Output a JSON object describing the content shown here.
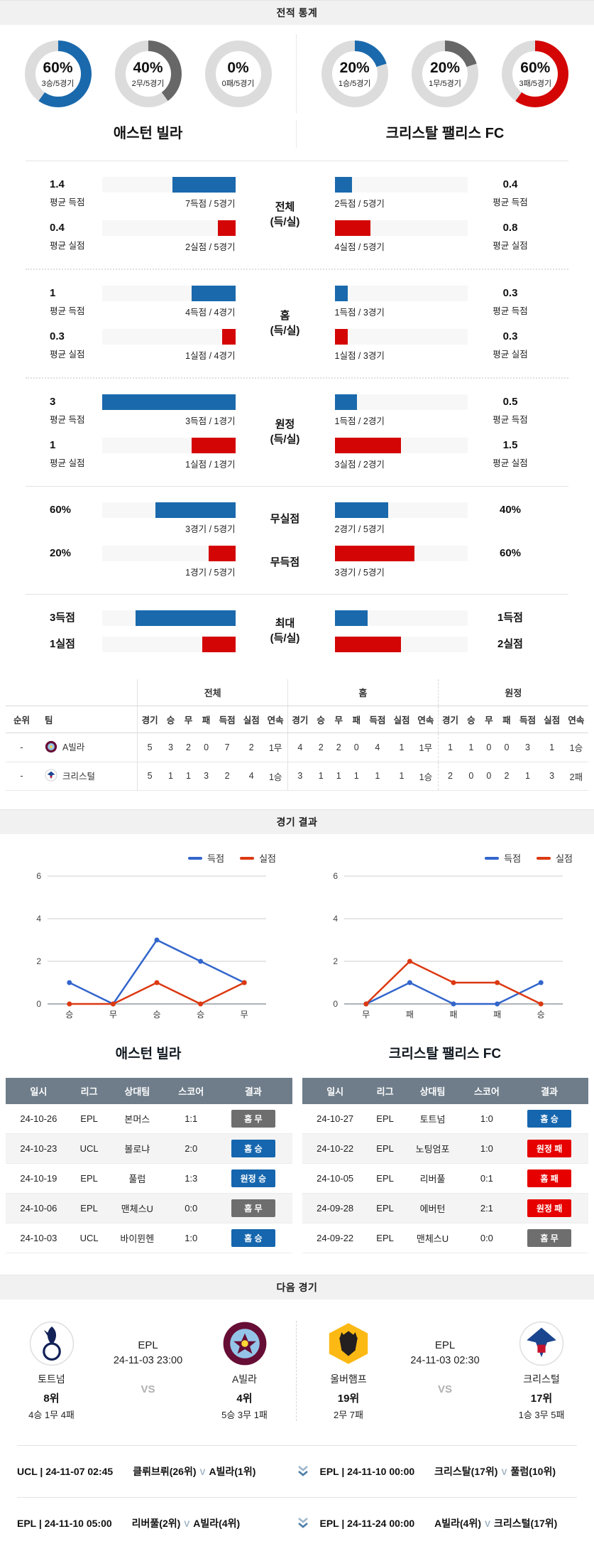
{
  "colors": {
    "blue": "#1a69ac",
    "red": "#d40505",
    "donut_gray": "#676767",
    "donut_track": "#dcdcdc",
    "line_blue": "#3366cc",
    "line_red": "#dc3912",
    "badge_blue": "#1566ae",
    "badge_red": "#e60000",
    "badge_gray": "#6e6e6e",
    "table_header_bg": "#6f7d8a"
  },
  "section_headers": {
    "stats": "전적 통계",
    "results": "경기 결과",
    "next": "다음 경기"
  },
  "teams": {
    "left": "애스턴 빌라",
    "right": "크리스탈 팰리스 FC"
  },
  "donuts": {
    "left": [
      {
        "pct": "60%",
        "sub": "3승/5경기",
        "value": 60,
        "color": "#1a69ac"
      },
      {
        "pct": "40%",
        "sub": "2무/5경기",
        "value": 40,
        "color": "#676767"
      },
      {
        "pct": "0%",
        "sub": "0패/5경기",
        "value": 0,
        "color": "#d40505"
      }
    ],
    "right": [
      {
        "pct": "20%",
        "sub": "1승/5경기",
        "value": 20,
        "color": "#1a69ac"
      },
      {
        "pct": "20%",
        "sub": "1무/5경기",
        "value": 20,
        "color": "#676767"
      },
      {
        "pct": "60%",
        "sub": "3패/5경기",
        "value": 60,
        "color": "#d40505"
      }
    ]
  },
  "comparisons": [
    {
      "center_line1": "전체",
      "center_line2": "(득/실)",
      "rows": [
        {
          "lv": "1.4",
          "ll": "평균 득점",
          "lsub": "7득점 / 5경기",
          "lbar": {
            "pct": 47,
            "color": "#1a69ac"
          },
          "rbar": {
            "pct": 13,
            "color": "#1a69ac"
          },
          "rsub": "2득점 / 5경기",
          "rv": "0.4",
          "rl": "평균 득점"
        },
        {
          "lv": "0.4",
          "ll": "평균 실점",
          "lsub": "2실점 / 5경기",
          "lbar": {
            "pct": 13,
            "color": "#d40505"
          },
          "rbar": {
            "pct": 27,
            "color": "#d40505"
          },
          "rsub": "4실점 / 5경기",
          "rv": "0.8",
          "rl": "평균 실점"
        }
      ]
    },
    {
      "center_line1": "홈",
      "center_line2": "(득/실)",
      "rows": [
        {
          "lv": "1",
          "ll": "평균 득점",
          "lsub": "4득점 / 4경기",
          "lbar": {
            "pct": 33,
            "color": "#1a69ac"
          },
          "rbar": {
            "pct": 10,
            "color": "#1a69ac"
          },
          "rsub": "1득점 / 3경기",
          "rv": "0.3",
          "rl": "평균 득점"
        },
        {
          "lv": "0.3",
          "ll": "평균 실점",
          "lsub": "1실점 / 4경기",
          "lbar": {
            "pct": 10,
            "color": "#d40505"
          },
          "rbar": {
            "pct": 10,
            "color": "#d40505"
          },
          "rsub": "1실점 / 3경기",
          "rv": "0.3",
          "rl": "평균 실점"
        }
      ]
    },
    {
      "center_line1": "원정",
      "center_line2": "(득/실)",
      "rows": [
        {
          "lv": "3",
          "ll": "평균 득점",
          "lsub": "3득점 / 1경기",
          "lbar": {
            "pct": 100,
            "color": "#1a69ac"
          },
          "rbar": {
            "pct": 17,
            "color": "#1a69ac"
          },
          "rsub": "1득점 / 2경기",
          "rv": "0.5",
          "rl": "평균 득점"
        },
        {
          "lv": "1",
          "ll": "평균 실점",
          "lsub": "1실점 / 1경기",
          "lbar": {
            "pct": 33,
            "color": "#d40505"
          },
          "rbar": {
            "pct": 50,
            "color": "#d40505"
          },
          "rsub": "3실점 / 2경기",
          "rv": "1.5",
          "rl": "평균 실점"
        }
      ]
    },
    {
      "rows": [
        {
          "lv": "60%",
          "lsub": "3경기 / 5경기",
          "lbar": {
            "pct": 60,
            "color": "#1a69ac"
          },
          "center": "무실점",
          "rbar": {
            "pct": 40,
            "color": "#1a69ac"
          },
          "rsub": "2경기 / 5경기",
          "rv": "40%"
        },
        {
          "lv": "20%",
          "lsub": "1경기 / 5경기",
          "lbar": {
            "pct": 20,
            "color": "#d40505"
          },
          "center": "무득점",
          "rbar": {
            "pct": 60,
            "color": "#d40505"
          },
          "rsub": "3경기 / 5경기",
          "rv": "60%"
        }
      ]
    },
    {
      "center_line1": "최대",
      "center_line2": "(득/실)",
      "rows": [
        {
          "lv": "3득점",
          "lbar": {
            "pct": 75,
            "color": "#1a69ac"
          },
          "rbar": {
            "pct": 25,
            "color": "#1a69ac"
          },
          "rv": "1득점"
        },
        {
          "lv": "1실점",
          "lbar": {
            "pct": 25,
            "color": "#d40505"
          },
          "rbar": {
            "pct": 50,
            "color": "#d40505"
          },
          "rv": "2실점"
        }
      ]
    }
  ],
  "standings": {
    "col_rank": "순위",
    "col_team": "팀",
    "groups": [
      "전체",
      "홈",
      "원정"
    ],
    "subcols": [
      "경기",
      "승",
      "무",
      "패",
      "득점",
      "실점",
      "연속"
    ],
    "rows": [
      {
        "rank": "-",
        "team": "A빌라",
        "overall": [
          "5",
          "3",
          "2",
          "0",
          "7",
          "2",
          "1무"
        ],
        "home": [
          "4",
          "2",
          "2",
          "0",
          "4",
          "1",
          "1무"
        ],
        "away": [
          "1",
          "1",
          "0",
          "0",
          "3",
          "1",
          "1승"
        ]
      },
      {
        "rank": "-",
        "team": "크리스털",
        "overall": [
          "5",
          "1",
          "1",
          "3",
          "2",
          "4",
          "1승"
        ],
        "home": [
          "3",
          "1",
          "1",
          "1",
          "1",
          "1",
          "1승"
        ],
        "away": [
          "2",
          "0",
          "0",
          "2",
          "1",
          "3",
          "2패"
        ]
      }
    ]
  },
  "chart_data": [
    {
      "type": "line",
      "title": "애스턴 빌라",
      "x_labels": [
        "승",
        "무",
        "승",
        "승",
        "무"
      ],
      "series": [
        {
          "name": "득점",
          "color": "#3366cc",
          "values": [
            1,
            0,
            3,
            2,
            1
          ]
        },
        {
          "name": "실점",
          "color": "#dc3912",
          "values": [
            0,
            0,
            1,
            0,
            1
          ]
        }
      ],
      "ylim": [
        0,
        6
      ],
      "yticks": [
        0,
        2,
        4,
        6
      ],
      "grid": true,
      "legend_position": "top-right"
    },
    {
      "type": "line",
      "title": "크리스탈 팰리스 FC",
      "x_labels": [
        "무",
        "패",
        "패",
        "패",
        "승"
      ],
      "series": [
        {
          "name": "득점",
          "color": "#3366cc",
          "values": [
            0,
            1,
            0,
            0,
            1
          ]
        },
        {
          "name": "실점",
          "color": "#dc3912",
          "values": [
            0,
            2,
            1,
            1,
            0
          ]
        }
      ],
      "ylim": [
        0,
        6
      ],
      "yticks": [
        0,
        2,
        4,
        6
      ],
      "grid": true,
      "legend_position": "top-right"
    }
  ],
  "match_tables": {
    "headers": [
      "일시",
      "리그",
      "상대팀",
      "스코어",
      "결과"
    ],
    "left": {
      "rows": [
        {
          "date": "24-10-26",
          "league": "EPL",
          "opp": "본머스",
          "score": "1:1",
          "result": "홈 무",
          "type": "draw"
        },
        {
          "date": "24-10-23",
          "league": "UCL",
          "opp": "볼로냐",
          "score": "2:0",
          "result": "홈 승",
          "type": "win"
        },
        {
          "date": "24-10-19",
          "league": "EPL",
          "opp": "풀럼",
          "score": "1:3",
          "result": "원정 승",
          "type": "win"
        },
        {
          "date": "24-10-06",
          "league": "EPL",
          "opp": "맨체스U",
          "score": "0:0",
          "result": "홈 무",
          "type": "draw"
        },
        {
          "date": "24-10-03",
          "league": "UCL",
          "opp": "바이뮌헨",
          "score": "1:0",
          "result": "홈 승",
          "type": "win"
        }
      ]
    },
    "right": {
      "rows": [
        {
          "date": "24-10-27",
          "league": "EPL",
          "opp": "토트넘",
          "score": "1:0",
          "result": "홈 승",
          "type": "win"
        },
        {
          "date": "24-10-22",
          "league": "EPL",
          "opp": "노팅엄포",
          "score": "1:0",
          "result": "원정 패",
          "type": "loss"
        },
        {
          "date": "24-10-05",
          "league": "EPL",
          "opp": "리버풀",
          "score": "0:1",
          "result": "홈 패",
          "type": "loss"
        },
        {
          "date": "24-09-28",
          "league": "EPL",
          "opp": "에버턴",
          "score": "2:1",
          "result": "원정 패",
          "type": "loss"
        },
        {
          "date": "24-09-22",
          "league": "EPL",
          "opp": "맨체스U",
          "score": "0:0",
          "result": "홈 무",
          "type": "draw"
        }
      ]
    }
  },
  "next_matches": [
    {
      "league": "EPL",
      "datetime": "24-11-03 23:00",
      "vs": "VS",
      "home": {
        "name": "토트넘",
        "rank": "8위",
        "record": "4승 1무 4패"
      },
      "away": {
        "name": "A빌라",
        "rank": "4위",
        "record": "5승 3무 1패"
      }
    },
    {
      "league": "EPL",
      "datetime": "24-11-03 02:30",
      "vs": "VS",
      "home": {
        "name": "울버햄프",
        "rank": "19위",
        "record": "2무 7패"
      },
      "away": {
        "name": "크리스털",
        "rank": "17위",
        "record": "1승 3무 5패"
      }
    }
  ],
  "upcoming": {
    "rows": [
      {
        "left": {
          "meta": "UCL | 24-11-07 02:45",
          "t1": "클뤼브뤼(26위)",
          "vs": "V",
          "t2": "A빌라(1위)"
        },
        "right": {
          "meta": "EPL | 24-11-10 00:00",
          "t1": "크리스탈(17위)",
          "vs": "V",
          "t2": "풀럼(10위)"
        }
      },
      {
        "left": {
          "meta": "EPL | 24-11-10 05:00",
          "t1": "리버풀(2위)",
          "vs": "V",
          "t2": "A빌라(4위)"
        },
        "right": {
          "meta": "EPL | 24-11-24 00:00",
          "t1": "A빌라(4위)",
          "vs": "V",
          "t2": "크리스털(17위)"
        }
      }
    ]
  }
}
